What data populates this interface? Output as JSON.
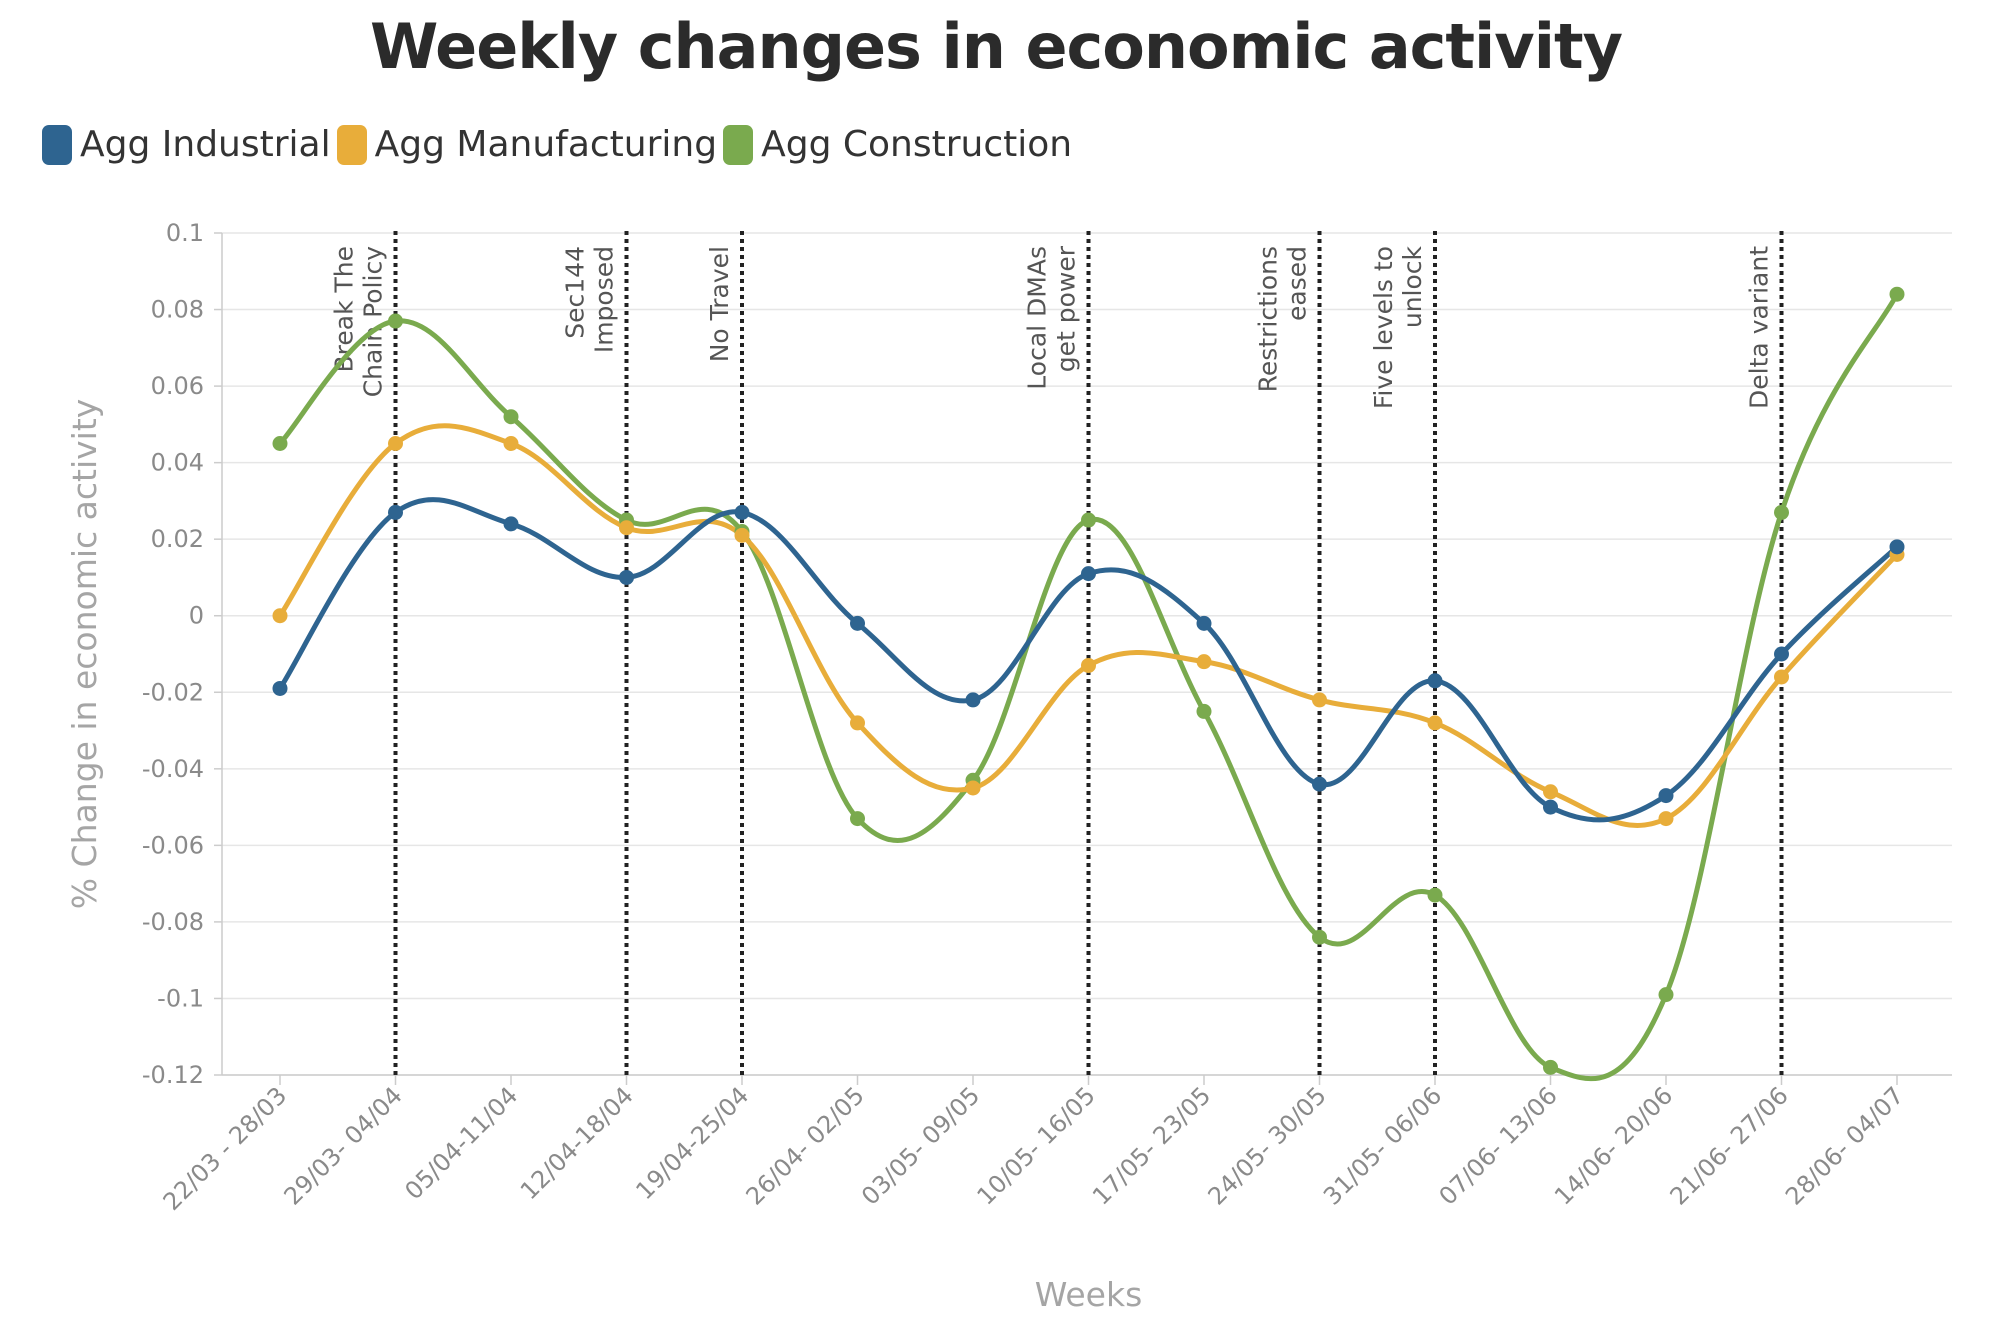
{
  "chart_data": {
    "type": "line",
    "title": "Weekly changes in economic activity",
    "xlabel": "Weeks",
    "ylabel": "% Change in economic activity",
    "ylim": [
      -0.12,
      0.1
    ],
    "yticks": [
      0.1,
      0.08,
      0.06,
      0.04,
      0.02,
      0,
      -0.02,
      -0.04,
      -0.06,
      -0.08,
      -0.1,
      -0.12
    ],
    "ytick_labels": [
      "0.1",
      "0.08",
      "0.06",
      "0.04",
      "0.02",
      "0",
      "-0.02",
      "-0.04",
      "-0.06",
      "-0.08",
      "-0.1",
      "-0.12"
    ],
    "grid": true,
    "legend_position": "top-left",
    "categories": [
      "22/03 - 28/03",
      "29/03- 04/04",
      "05/04-11/04",
      "12/04-18/04",
      "19/04-25/04",
      "26/04- 02/05",
      "03/05- 09/05",
      "10/05- 16/05",
      "17/05- 23/05",
      "24/05- 30/05",
      "31/05- 06/06",
      "07/06- 13/06",
      "14/06- 20/06",
      "21/06- 27/06",
      "28/06- 04/07"
    ],
    "series": [
      {
        "name": "Agg Industrial",
        "color": "#2e6490",
        "values": [
          -0.019,
          0.027,
          0.024,
          0.01,
          0.027,
          -0.002,
          -0.022,
          0.011,
          -0.002,
          -0.044,
          -0.017,
          -0.05,
          -0.047,
          -0.01,
          0.018
        ]
      },
      {
        "name": "Agg Manufacturing",
        "color": "#e8ad3a",
        "values": [
          0.0,
          0.045,
          0.045,
          0.023,
          0.021,
          -0.028,
          -0.045,
          -0.013,
          -0.012,
          -0.022,
          -0.028,
          -0.046,
          -0.053,
          -0.016,
          0.016
        ]
      },
      {
        "name": "Agg Construction",
        "color": "#7aaa4e",
        "values": [
          0.045,
          0.077,
          0.052,
          0.025,
          0.022,
          -0.053,
          -0.043,
          0.025,
          -0.025,
          -0.084,
          -0.073,
          -0.118,
          -0.099,
          0.027,
          0.084
        ]
      }
    ],
    "annotations": [
      {
        "index": 1,
        "lines": [
          "Break The",
          "Chain Policy"
        ]
      },
      {
        "index": 3,
        "lines": [
          "Sec144",
          "Imposed"
        ]
      },
      {
        "index": 4,
        "lines": [
          "No Travel"
        ]
      },
      {
        "index": 7,
        "lines": [
          "Local DMAs",
          "get power"
        ]
      },
      {
        "index": 9,
        "lines": [
          "Restrictions",
          "eased"
        ]
      },
      {
        "index": 10,
        "lines": [
          "Five levels to",
          "unlock"
        ]
      },
      {
        "index": 13,
        "lines": [
          "Delta variant"
        ]
      }
    ]
  }
}
